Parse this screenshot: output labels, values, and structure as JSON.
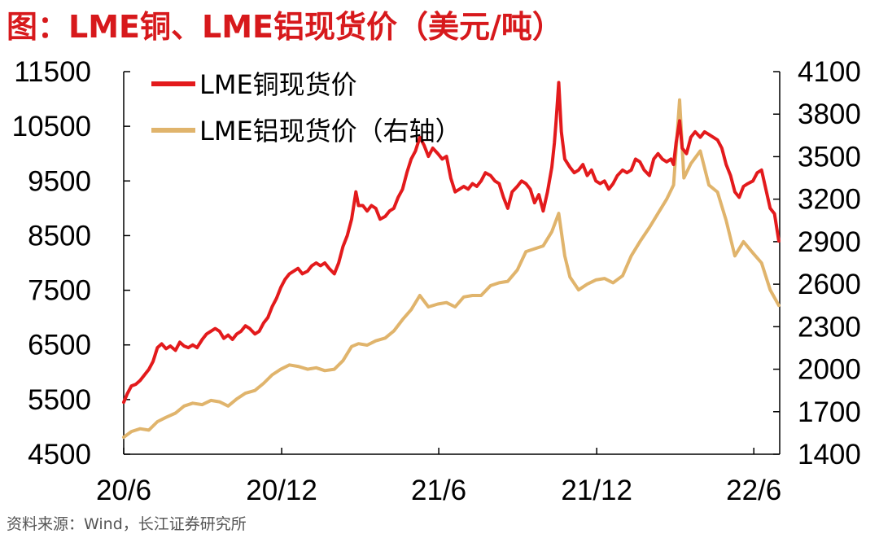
{
  "title": "图：LME铜、LME铝现货价（美元/吨）",
  "source": "资料来源：Wind，长江证券研究所",
  "colors": {
    "copper": "#e31a1c",
    "aluminum": "#e0b46c"
  },
  "chart_data": {
    "type": "line",
    "x_tick_labels": [
      "20/6",
      "20/12",
      "21/6",
      "21/12",
      "22/6"
    ],
    "x_range": [
      "2020-06",
      "2022-07"
    ],
    "y_left": {
      "ylim": [
        4500,
        11500
      ],
      "ticks": [
        4500,
        5500,
        6500,
        7500,
        8500,
        9500,
        10500,
        11500
      ]
    },
    "y_right": {
      "ylim": [
        1400,
        4100
      ],
      "ticks": [
        1400,
        1700,
        2000,
        2300,
        2600,
        2900,
        3200,
        3500,
        3800,
        4100
      ]
    },
    "legend_position": "top-left",
    "series": [
      {
        "name": "LME铜现货价",
        "axis": "left",
        "points": [
          [
            "2020-06-01",
            5450
          ],
          [
            "2020-06-05",
            5600
          ],
          [
            "2020-06-10",
            5750
          ],
          [
            "2020-06-15",
            5780
          ],
          [
            "2020-06-20",
            5850
          ],
          [
            "2020-06-25",
            5950
          ],
          [
            "2020-06-30",
            6050
          ],
          [
            "2020-07-05",
            6200
          ],
          [
            "2020-07-10",
            6450
          ],
          [
            "2020-07-15",
            6520
          ],
          [
            "2020-07-20",
            6430
          ],
          [
            "2020-07-25",
            6480
          ],
          [
            "2020-07-31",
            6400
          ],
          [
            "2020-08-05",
            6550
          ],
          [
            "2020-08-10",
            6480
          ],
          [
            "2020-08-15",
            6450
          ],
          [
            "2020-08-20",
            6500
          ],
          [
            "2020-08-25",
            6450
          ],
          [
            "2020-08-31",
            6600
          ],
          [
            "2020-09-05",
            6700
          ],
          [
            "2020-09-10",
            6750
          ],
          [
            "2020-09-15",
            6800
          ],
          [
            "2020-09-20",
            6750
          ],
          [
            "2020-09-25",
            6620
          ],
          [
            "2020-09-30",
            6680
          ],
          [
            "2020-10-05",
            6600
          ],
          [
            "2020-10-10",
            6700
          ],
          [
            "2020-10-15",
            6750
          ],
          [
            "2020-10-20",
            6850
          ],
          [
            "2020-10-25",
            6800
          ],
          [
            "2020-10-31",
            6700
          ],
          [
            "2020-11-05",
            6750
          ],
          [
            "2020-11-10",
            6900
          ],
          [
            "2020-11-15",
            7000
          ],
          [
            "2020-11-20",
            7200
          ],
          [
            "2020-11-25",
            7350
          ],
          [
            "2020-11-30",
            7550
          ],
          [
            "2020-12-05",
            7700
          ],
          [
            "2020-12-10",
            7800
          ],
          [
            "2020-12-15",
            7850
          ],
          [
            "2020-12-20",
            7900
          ],
          [
            "2020-12-25",
            7800
          ],
          [
            "2020-12-31",
            7850
          ],
          [
            "2021-01-05",
            7950
          ],
          [
            "2021-01-10",
            8000
          ],
          [
            "2021-01-15",
            7950
          ],
          [
            "2021-01-20",
            8000
          ],
          [
            "2021-01-25",
            7900
          ],
          [
            "2021-01-31",
            7800
          ],
          [
            "2021-02-05",
            8000
          ],
          [
            "2021-02-10",
            8300
          ],
          [
            "2021-02-15",
            8500
          ],
          [
            "2021-02-20",
            8800
          ],
          [
            "2021-02-25",
            9300
          ],
          [
            "2021-02-28",
            9050
          ],
          [
            "2021-03-05",
            9050
          ],
          [
            "2021-03-10",
            8950
          ],
          [
            "2021-03-15",
            9050
          ],
          [
            "2021-03-20",
            9000
          ],
          [
            "2021-03-25",
            8800
          ],
          [
            "2021-03-31",
            8850
          ],
          [
            "2021-04-05",
            8950
          ],
          [
            "2021-04-10",
            9000
          ],
          [
            "2021-04-15",
            9200
          ],
          [
            "2021-04-20",
            9350
          ],
          [
            "2021-04-25",
            9650
          ],
          [
            "2021-04-30",
            9900
          ],
          [
            "2021-05-05",
            10050
          ],
          [
            "2021-05-10",
            10300
          ],
          [
            "2021-05-15",
            10150
          ],
          [
            "2021-05-20",
            9950
          ],
          [
            "2021-05-25",
            10100
          ],
          [
            "2021-05-31",
            10000
          ],
          [
            "2021-06-05",
            9900
          ],
          [
            "2021-06-10",
            9950
          ],
          [
            "2021-06-15",
            9550
          ],
          [
            "2021-06-20",
            9300
          ],
          [
            "2021-06-25",
            9350
          ],
          [
            "2021-06-30",
            9400
          ],
          [
            "2021-07-05",
            9350
          ],
          [
            "2021-07-10",
            9450
          ],
          [
            "2021-07-15",
            9400
          ],
          [
            "2021-07-20",
            9500
          ],
          [
            "2021-07-25",
            9650
          ],
          [
            "2021-07-31",
            9600
          ],
          [
            "2021-08-05",
            9500
          ],
          [
            "2021-08-10",
            9450
          ],
          [
            "2021-08-15",
            9200
          ],
          [
            "2021-08-20",
            9000
          ],
          [
            "2021-08-25",
            9300
          ],
          [
            "2021-08-31",
            9400
          ],
          [
            "2021-09-05",
            9500
          ],
          [
            "2021-09-10",
            9450
          ],
          [
            "2021-09-15",
            9350
          ],
          [
            "2021-09-20",
            9100
          ],
          [
            "2021-09-25",
            9250
          ],
          [
            "2021-09-30",
            8950
          ],
          [
            "2021-10-05",
            9300
          ],
          [
            "2021-10-10",
            9750
          ],
          [
            "2021-10-13",
            10200
          ],
          [
            "2021-10-15",
            10600
          ],
          [
            "2021-10-18",
            11300
          ],
          [
            "2021-10-21",
            10400
          ],
          [
            "2021-10-25",
            9900
          ],
          [
            "2021-10-31",
            9750
          ],
          [
            "2021-11-05",
            9650
          ],
          [
            "2021-11-10",
            9700
          ],
          [
            "2021-11-15",
            9800
          ],
          [
            "2021-11-20",
            9600
          ],
          [
            "2021-11-25",
            9700
          ],
          [
            "2021-11-30",
            9500
          ],
          [
            "2021-12-05",
            9450
          ],
          [
            "2021-12-10",
            9500
          ],
          [
            "2021-12-15",
            9350
          ],
          [
            "2021-12-20",
            9450
          ],
          [
            "2021-12-25",
            9600
          ],
          [
            "2021-12-31",
            9700
          ],
          [
            "2022-01-05",
            9650
          ],
          [
            "2022-01-10",
            9700
          ],
          [
            "2022-01-15",
            9900
          ],
          [
            "2022-01-20",
            9850
          ],
          [
            "2022-01-25",
            9700
          ],
          [
            "2022-01-31",
            9600
          ],
          [
            "2022-02-05",
            9900
          ],
          [
            "2022-02-10",
            10000
          ],
          [
            "2022-02-15",
            9900
          ],
          [
            "2022-02-20",
            9850
          ],
          [
            "2022-02-25",
            9900
          ],
          [
            "2022-02-28",
            9800
          ],
          [
            "2022-03-03",
            10200
          ],
          [
            "2022-03-07",
            10600
          ],
          [
            "2022-03-10",
            10100
          ],
          [
            "2022-03-15",
            10000
          ],
          [
            "2022-03-20",
            10300
          ],
          [
            "2022-03-25",
            10400
          ],
          [
            "2022-03-31",
            10300
          ],
          [
            "2022-04-05",
            10400
          ],
          [
            "2022-04-10",
            10350
          ],
          [
            "2022-04-15",
            10300
          ],
          [
            "2022-04-20",
            10250
          ],
          [
            "2022-04-25",
            10100
          ],
          [
            "2022-04-30",
            9800
          ],
          [
            "2022-05-05",
            9600
          ],
          [
            "2022-05-10",
            9300
          ],
          [
            "2022-05-15",
            9200
          ],
          [
            "2022-05-20",
            9400
          ],
          [
            "2022-05-25",
            9450
          ],
          [
            "2022-05-31",
            9500
          ],
          [
            "2022-06-05",
            9650
          ],
          [
            "2022-06-10",
            9700
          ],
          [
            "2022-06-15",
            9350
          ],
          [
            "2022-06-20",
            9000
          ],
          [
            "2022-06-25",
            8900
          ],
          [
            "2022-06-30",
            8400
          ]
        ]
      },
      {
        "name": "LME铝现货价（右轴）",
        "axis": "right",
        "points": [
          [
            "2020-06-01",
            1520
          ],
          [
            "2020-06-10",
            1560
          ],
          [
            "2020-06-20",
            1580
          ],
          [
            "2020-06-30",
            1570
          ],
          [
            "2020-07-10",
            1630
          ],
          [
            "2020-07-20",
            1660
          ],
          [
            "2020-07-31",
            1690
          ],
          [
            "2020-08-10",
            1740
          ],
          [
            "2020-08-20",
            1760
          ],
          [
            "2020-08-31",
            1750
          ],
          [
            "2020-09-10",
            1780
          ],
          [
            "2020-09-20",
            1770
          ],
          [
            "2020-09-30",
            1740
          ],
          [
            "2020-10-10",
            1790
          ],
          [
            "2020-10-20",
            1830
          ],
          [
            "2020-10-31",
            1850
          ],
          [
            "2020-11-10",
            1900
          ],
          [
            "2020-11-20",
            1960
          ],
          [
            "2020-11-30",
            2000
          ],
          [
            "2020-12-10",
            2030
          ],
          [
            "2020-12-20",
            2020
          ],
          [
            "2020-12-31",
            2000
          ],
          [
            "2021-01-10",
            2010
          ],
          [
            "2021-01-20",
            1990
          ],
          [
            "2021-01-31",
            2000
          ],
          [
            "2021-02-10",
            2060
          ],
          [
            "2021-02-20",
            2160
          ],
          [
            "2021-02-28",
            2180
          ],
          [
            "2021-03-10",
            2170
          ],
          [
            "2021-03-20",
            2200
          ],
          [
            "2021-03-31",
            2220
          ],
          [
            "2021-04-10",
            2270
          ],
          [
            "2021-04-20",
            2350
          ],
          [
            "2021-04-30",
            2420
          ],
          [
            "2021-05-10",
            2520
          ],
          [
            "2021-05-20",
            2440
          ],
          [
            "2021-05-31",
            2460
          ],
          [
            "2021-06-10",
            2470
          ],
          [
            "2021-06-20",
            2440
          ],
          [
            "2021-06-30",
            2510
          ],
          [
            "2021-07-10",
            2520
          ],
          [
            "2021-07-20",
            2520
          ],
          [
            "2021-07-31",
            2590
          ],
          [
            "2021-08-10",
            2610
          ],
          [
            "2021-08-20",
            2620
          ],
          [
            "2021-08-31",
            2700
          ],
          [
            "2021-09-10",
            2830
          ],
          [
            "2021-09-20",
            2850
          ],
          [
            "2021-09-30",
            2870
          ],
          [
            "2021-10-10",
            2970
          ],
          [
            "2021-10-18",
            3100
          ],
          [
            "2021-10-25",
            2800
          ],
          [
            "2021-10-31",
            2650
          ],
          [
            "2021-11-10",
            2560
          ],
          [
            "2021-11-20",
            2600
          ],
          [
            "2021-11-30",
            2630
          ],
          [
            "2021-12-10",
            2640
          ],
          [
            "2021-12-20",
            2610
          ],
          [
            "2021-12-31",
            2660
          ],
          [
            "2022-01-10",
            2800
          ],
          [
            "2022-01-20",
            2900
          ],
          [
            "2022-01-31",
            3000
          ],
          [
            "2022-02-10",
            3100
          ],
          [
            "2022-02-20",
            3200
          ],
          [
            "2022-02-28",
            3300
          ],
          [
            "2022-03-07",
            3900
          ],
          [
            "2022-03-12",
            3350
          ],
          [
            "2022-03-20",
            3450
          ],
          [
            "2022-03-31",
            3540
          ],
          [
            "2022-04-10",
            3300
          ],
          [
            "2022-04-20",
            3250
          ],
          [
            "2022-04-30",
            3050
          ],
          [
            "2022-05-10",
            2800
          ],
          [
            "2022-05-20",
            2900
          ],
          [
            "2022-05-31",
            2820
          ],
          [
            "2022-06-10",
            2750
          ],
          [
            "2022-06-20",
            2560
          ],
          [
            "2022-06-30",
            2450
          ]
        ]
      }
    ]
  }
}
